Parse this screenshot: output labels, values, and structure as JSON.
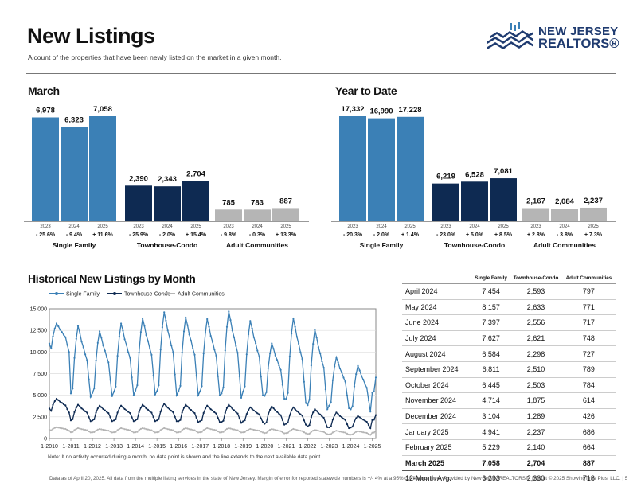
{
  "header": {
    "title": "New Listings",
    "subtitle": "A count of the properties that have been newly listed on the market in a given month.",
    "logo_line1": "NEW JERSEY",
    "logo_line2": "REALTORS®"
  },
  "colors": {
    "single_family": "#3b80b6",
    "townhouse_condo": "#0e2a52",
    "adult_communities": "#b5b5b5"
  },
  "chart_data": [
    {
      "type": "bar",
      "title": "March",
      "groups": [
        {
          "name": "Single Family",
          "years": [
            "2023",
            "2024",
            "2025"
          ],
          "values": [
            6978,
            6323,
            7058
          ],
          "labels": [
            "6,978",
            "6,323",
            "7,058"
          ],
          "changes": [
            "- 25.6%",
            "- 9.4%",
            "+ 11.6%"
          ]
        },
        {
          "name": "Townhouse-Condo",
          "years": [
            "2023",
            "2024",
            "2025"
          ],
          "values": [
            2390,
            2343,
            2704
          ],
          "labels": [
            "2,390",
            "2,343",
            "2,704"
          ],
          "changes": [
            "- 25.9%",
            "- 2.0%",
            "+ 15.4%"
          ]
        },
        {
          "name": "Adult Communities",
          "years": [
            "2023",
            "2024",
            "2025"
          ],
          "values": [
            785,
            783,
            887
          ],
          "labels": [
            "785",
            "783",
            "887"
          ],
          "changes": [
            "- 9.8%",
            "- 0.3%",
            "+ 13.3%"
          ]
        }
      ]
    },
    {
      "type": "bar",
      "title": "Year to Date",
      "groups": [
        {
          "name": "Single Family",
          "years": [
            "2023",
            "2024",
            "2025"
          ],
          "values": [
            17332,
            16990,
            17228
          ],
          "labels": [
            "17,332",
            "16,990",
            "17,228"
          ],
          "changes": [
            "- 20.3%",
            "- 2.0%",
            "+ 1.4%"
          ]
        },
        {
          "name": "Townhouse-Condo",
          "years": [
            "2023",
            "2024",
            "2025"
          ],
          "values": [
            6219,
            6528,
            7081
          ],
          "labels": [
            "6,219",
            "6,528",
            "7,081"
          ],
          "changes": [
            "- 23.0%",
            "+ 5.0%",
            "+ 8.5%"
          ]
        },
        {
          "name": "Adult Communities",
          "years": [
            "2023",
            "2024",
            "2025"
          ],
          "values": [
            2167,
            2084,
            2237
          ],
          "labels": [
            "2,167",
            "2,084",
            "2,237"
          ],
          "changes": [
            "+ 2.8%",
            "- 3.8%",
            "+ 7.3%"
          ]
        }
      ]
    },
    {
      "type": "line",
      "title": "Historical New Listings by Month",
      "x_ticks": [
        "1-2010",
        "1-2011",
        "1-2012",
        "1-2013",
        "1-2014",
        "1-2015",
        "1-2016",
        "1-2017",
        "1-2018",
        "1-2019",
        "1-2020",
        "1-2021",
        "1-2022",
        "1-2023",
        "1-2024",
        "1-2025"
      ],
      "x_range": [
        "1-2010",
        "3-2025"
      ],
      "y_ticks": [
        "0",
        "2,500",
        "5,000",
        "7,500",
        "10,000",
        "12,500",
        "15,000"
      ],
      "ylim": [
        0,
        15000
      ],
      "grid": true,
      "legend_position": "top-left",
      "series": [
        {
          "name": "Single Family",
          "annual_peaks": [
            13300,
            13000,
            12400,
            13300,
            13900,
            14600,
            14000,
            13800,
            14700,
            13600,
            11000,
            13900,
            12600,
            9400,
            8400,
            7100
          ],
          "annual_troughs": [
            10000,
            4800,
            4900,
            5000,
            5100,
            5000,
            5000,
            5000,
            4700,
            5000,
            4600,
            4100,
            3400,
            3500,
            3100,
            5200
          ],
          "last_value": 7058
        },
        {
          "name": "Townhouse-Condo",
          "annual_peaks": [
            4600,
            3900,
            3800,
            3800,
            3900,
            4000,
            3900,
            3800,
            3900,
            3600,
            3700,
            3600,
            3400,
            3000,
            2600,
            2700
          ],
          "annual_troughs": [
            3000,
            2000,
            2000,
            2000,
            2000,
            2000,
            1900,
            1900,
            1800,
            1900,
            1600,
            1600,
            1300,
            1200,
            1200,
            2100
          ],
          "last_value": 2704
        },
        {
          "name": "Adult Communities",
          "annual_peaks": [
            1300,
            1200,
            1100,
            1200,
            1200,
            1200,
            1200,
            1200,
            1200,
            1100,
            1100,
            1100,
            1000,
            900,
            850,
            890
          ],
          "annual_troughs": [
            900,
            700,
            700,
            700,
            700,
            700,
            700,
            700,
            700,
            700,
            600,
            600,
            500,
            450,
            420,
            660
          ],
          "last_value": 887
        }
      ]
    },
    {
      "type": "table",
      "columns": [
        "",
        "Single Family",
        "Townhouse-Condo",
        "Adult Communities"
      ],
      "rows": [
        [
          "April 2024",
          "7,454",
          "2,593",
          "797"
        ],
        [
          "May 2024",
          "8,157",
          "2,633",
          "771"
        ],
        [
          "June 2024",
          "7,397",
          "2,556",
          "717"
        ],
        [
          "July 2024",
          "7,627",
          "2,621",
          "748"
        ],
        [
          "August 2024",
          "6,584",
          "2,298",
          "727"
        ],
        [
          "September 2024",
          "6,811",
          "2,510",
          "789"
        ],
        [
          "October 2024",
          "6,445",
          "2,503",
          "784"
        ],
        [
          "November 2024",
          "4,714",
          "1,875",
          "614"
        ],
        [
          "December 2024",
          "3,104",
          "1,289",
          "426"
        ],
        [
          "January 2025",
          "4,941",
          "2,237",
          "686"
        ],
        [
          "February 2025",
          "5,229",
          "2,140",
          "664"
        ],
        [
          "March 2025",
          "7,058",
          "2,704",
          "887"
        ],
        [
          "12-Month Avg.",
          "6,293",
          "2,330",
          "718"
        ]
      ],
      "highlight_row": "March 2025"
    }
  ],
  "note": "Note: If no activity occurred during a month, no data point is shown and the line extends to the next available data point.",
  "footer": "Data as of April 20, 2025. All data from the multiple listing services in the state of New Jersey. Margin of error for reported statewide numbers is +/- 4% at a 95% confidence level. Provided by New Jersey REALTORS®. Report © 2025 ShowingTime Plus, LLC. | 5"
}
